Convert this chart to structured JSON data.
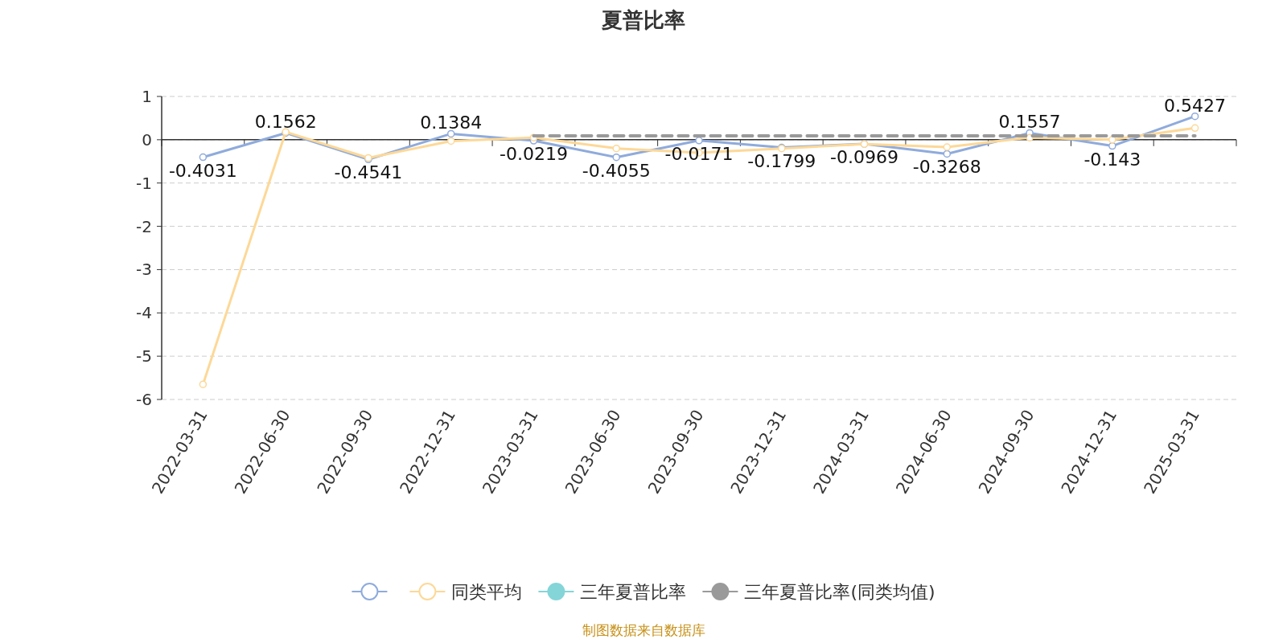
{
  "chart_data": {
    "type": "line",
    "title": "夏普比率",
    "categories": [
      "2022-03-31",
      "2022-06-30",
      "2022-09-30",
      "2022-12-31",
      "2023-03-31",
      "2023-06-30",
      "2023-09-30",
      "2023-12-31",
      "2024-03-31",
      "2024-06-30",
      "2024-09-30",
      "2024-12-31",
      "2025-03-31"
    ],
    "series": [
      {
        "color": "#8fabdc",
        "marker": "circle",
        "values": [
          -0.4031,
          0.1562,
          -0.4541,
          0.1384,
          -0.0219,
          -0.4055,
          -0.0171,
          -0.1799,
          -0.0969,
          -0.3268,
          0.1557,
          -0.143,
          0.5427
        ],
        "value_labels": [
          "-0.4031",
          "0.1562",
          "-0.4541",
          "0.1384",
          "-0.0219",
          "-0.4055",
          "-0.0171",
          "-0.1799",
          "-0.0969",
          "-0.3268",
          "0.1557",
          "-0.143",
          "0.5427"
        ]
      },
      {
        "name": "同类平均",
        "color": "#fdd897",
        "marker": "circle",
        "values": [
          -5.65,
          0.18,
          -0.42,
          -0.03,
          0.05,
          -0.2,
          -0.3,
          -0.2,
          -0.1,
          -0.17,
          0.05,
          0.0,
          0.27
        ]
      },
      {
        "name": "三年夏普比率",
        "color": "#84d5d8",
        "marker": "none",
        "values": [
          null,
          null,
          null,
          null,
          null,
          null,
          null,
          null,
          null,
          null,
          null,
          null,
          null
        ]
      },
      {
        "name": "三年夏普比率(同类均值)",
        "color": "#9a9a9a",
        "marker": "none",
        "line_style": "dashed",
        "values": [
          null,
          null,
          null,
          null,
          0.09,
          0.09,
          0.09,
          0.09,
          0.09,
          0.09,
          0.09,
          0.09,
          0.09
        ]
      }
    ],
    "ylim": [
      -6,
      1
    ],
    "yticks": [
      -6,
      -5,
      -4,
      -3,
      -2,
      -1,
      0,
      1
    ],
    "grid": "y",
    "legend": "bottom",
    "annotations": [
      "制图数据来自数据库"
    ]
  }
}
